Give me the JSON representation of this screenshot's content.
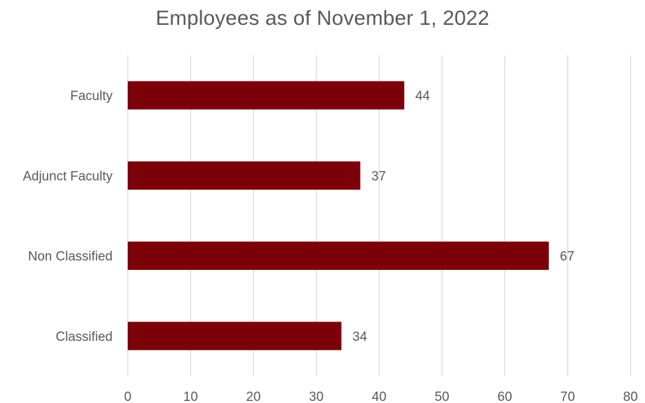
{
  "chart_data": {
    "type": "bar",
    "orientation": "horizontal",
    "title": "Employees as of November 1, 2022",
    "categories": [
      "Faculty",
      "Adjunct Faculty",
      "Non Classified",
      "Classified"
    ],
    "values": [
      44,
      37,
      67,
      34
    ],
    "data_labels": [
      "44",
      "37",
      "67",
      "34"
    ],
    "xlim": [
      0,
      80
    ],
    "xticks": [
      0,
      10,
      20,
      30,
      40,
      50,
      60,
      70,
      80
    ],
    "xtick_labels": [
      "0",
      "10",
      "20",
      "30",
      "40",
      "50",
      "60",
      "70",
      "80"
    ],
    "xlabel": "",
    "ylabel": "",
    "grid": "vertical",
    "legend": "none",
    "colors": {
      "bar": "#7B0009",
      "grid": "#d9d9d9",
      "text": "#595959"
    }
  }
}
